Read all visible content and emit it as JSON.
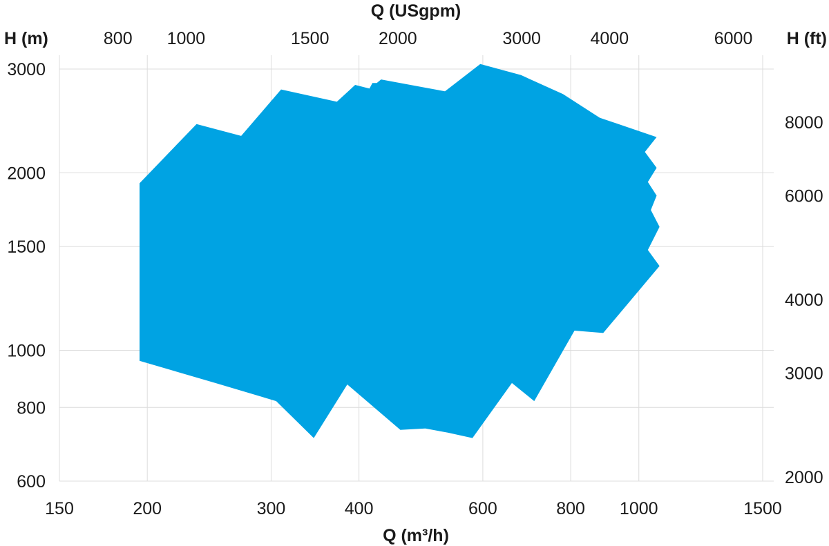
{
  "chart_data": {
    "type": "area",
    "title": "",
    "xlabel": "Q (m³/h)",
    "x2label": "Q (USgpm)",
    "ylabel": "H (m)",
    "y2label": "H (ft)",
    "xscale": "log",
    "yscale": "log",
    "xlim": [
      150,
      1500
    ],
    "ylim": [
      600,
      3000
    ],
    "grid": true,
    "x_ticks": [
      150,
      200,
      300,
      400,
      600,
      800,
      1000,
      1500
    ],
    "x2_ticks": [
      800,
      1000,
      1500,
      2000,
      3000,
      4000,
      6000
    ],
    "y_ticks": [
      600,
      800,
      1000,
      1500,
      2000,
      3000
    ],
    "y2_ticks": [
      2000,
      3000,
      4000,
      6000,
      8000
    ],
    "fill_color": "#00a3e3",
    "series": [
      {
        "name": "",
        "points": [
          [
            195,
            1920
          ],
          [
            235,
            2420
          ],
          [
            272,
            2310
          ],
          [
            310,
            2770
          ],
          [
            372,
            2640
          ],
          [
            395,
            2820
          ],
          [
            414,
            2780
          ],
          [
            418,
            2840
          ],
          [
            424,
            2840
          ],
          [
            430,
            2880
          ],
          [
            530,
            2750
          ],
          [
            595,
            3060
          ],
          [
            680,
            2930
          ],
          [
            780,
            2720
          ],
          [
            880,
            2480
          ],
          [
            1060,
            2300
          ],
          [
            1020,
            2170
          ],
          [
            1060,
            2040
          ],
          [
            1030,
            1930
          ],
          [
            1060,
            1830
          ],
          [
            1040,
            1730
          ],
          [
            1070,
            1620
          ],
          [
            1030,
            1480
          ],
          [
            1070,
            1390
          ],
          [
            890,
            1070
          ],
          [
            810,
            1080
          ],
          [
            710,
            820
          ],
          [
            660,
            880
          ],
          [
            580,
            710
          ],
          [
            535,
            725
          ],
          [
            497,
            737
          ],
          [
            458,
            733
          ],
          [
            385,
            875
          ],
          [
            345,
            710
          ],
          [
            305,
            820
          ],
          [
            250,
            880
          ],
          [
            195,
            960
          ]
        ]
      }
    ]
  }
}
